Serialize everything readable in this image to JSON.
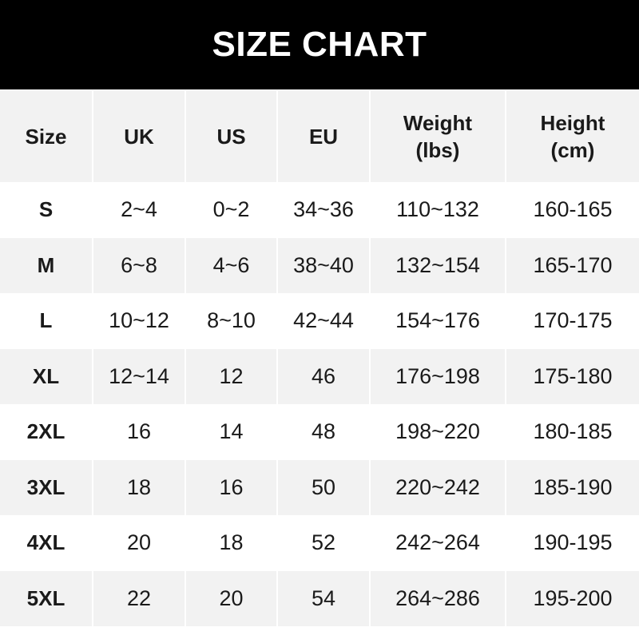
{
  "title": "SIZE CHART",
  "headers": [
    "Size",
    "UK",
    "US",
    "EU",
    "Weight\n(lbs)",
    "Height\n(cm)"
  ],
  "rows": [
    [
      "S",
      "2~4",
      "0~2",
      "34~36",
      "110~132",
      "160-165"
    ],
    [
      "M",
      "6~8",
      "4~6",
      "38~40",
      "132~154",
      "165-170"
    ],
    [
      "L",
      "10~12",
      "8~10",
      "42~44",
      "154~176",
      "170-175"
    ],
    [
      "XL",
      "12~14",
      "12",
      "46",
      "176~198",
      "175-180"
    ],
    [
      "2XL",
      "16",
      "14",
      "48",
      "198~220",
      "180-185"
    ],
    [
      "3XL",
      "18",
      "16",
      "50",
      "220~242",
      "185-190"
    ],
    [
      "4XL",
      "20",
      "18",
      "52",
      "242~264",
      "190-195"
    ],
    [
      "5XL",
      "22",
      "20",
      "54",
      "264~286",
      "195-200"
    ]
  ],
  "colors": {
    "banner": "#000000",
    "shaded_row": "#f2f2f2"
  }
}
